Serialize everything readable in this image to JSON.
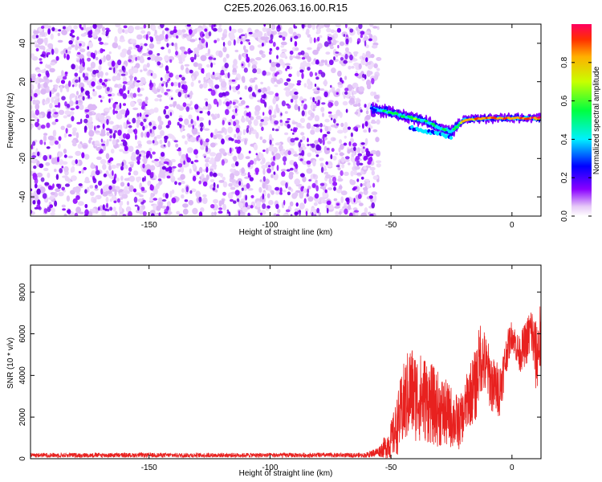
{
  "title": "C2E5.2026.063.16.00.R15",
  "chart_data": [
    {
      "type": "heatmap",
      "name": "spectrogram",
      "xlabel": "Height of straight line (km)",
      "ylabel": "Frequency (Hz)",
      "xlim": [
        -199,
        12
      ],
      "ylim": [
        -50,
        50
      ],
      "xticks": [
        -150,
        -100,
        -50,
        0
      ],
      "yticks": [
        -40,
        -20,
        0,
        20,
        40
      ],
      "xtick_labels": [
        "-150",
        "-100",
        "-50",
        "0"
      ],
      "ytick_labels": [
        "-40",
        "-20",
        "0",
        "20",
        "40"
      ],
      "noise_region_km": [
        -199,
        -57
      ],
      "signal_ridge": {
        "x": [
          -58,
          -50,
          -45,
          -40,
          -35,
          -30,
          -25,
          -20,
          -10,
          0,
          12
        ],
        "freq": [
          6,
          4,
          2,
          1,
          -1,
          -4,
          -6,
          0,
          1,
          1,
          1
        ],
        "amplitude": [
          0.3,
          0.5,
          0.5,
          0.55,
          0.45,
          0.45,
          0.4,
          0.85,
          0.9,
          0.95,
          0.9
        ]
      },
      "colorbar": {
        "label": "Normalized spectral amplitude",
        "range": [
          0,
          1
        ],
        "ticks": [
          0.0,
          0.2,
          0.4,
          0.6,
          0.8
        ],
        "tick_labels": [
          "0.0",
          "0.2",
          "0.4",
          "0.6",
          "0.8"
        ]
      }
    },
    {
      "type": "line",
      "name": "snr",
      "xlabel": "Height of straight line (km)",
      "ylabel": "SNR (10 * v/v)",
      "xlim": [
        -199,
        12
      ],
      "ylim": [
        0,
        9300
      ],
      "xticks": [
        -150,
        -100,
        -50,
        0
      ],
      "yticks": [
        0,
        2000,
        4000,
        6000,
        8000
      ],
      "xtick_labels": [
        "-150",
        "-100",
        "-50",
        "0"
      ],
      "ytick_labels": [
        "0",
        "2000",
        "4000",
        "6000",
        "8000"
      ],
      "color": "#e8211f",
      "envelope": {
        "x": [
          -199,
          -60,
          -55,
          -52,
          -50,
          -48,
          -45,
          -42,
          -40,
          -36,
          -32,
          -28,
          -25,
          -22,
          -20,
          -18,
          -15,
          -13,
          -10,
          -8,
          -5,
          -2,
          0,
          3,
          6,
          8,
          10,
          12
        ],
        "mean": [
          180,
          180,
          350,
          600,
          900,
          1400,
          2500,
          3300,
          3000,
          2900,
          2500,
          2200,
          2000,
          1700,
          2100,
          3000,
          3500,
          5000,
          4200,
          3500,
          3300,
          5200,
          6000,
          5000,
          5600,
          6200,
          4800,
          6000
        ],
        "spread": [
          120,
          130,
          250,
          600,
          900,
          1300,
          2000,
          2300,
          2200,
          2100,
          1900,
          1700,
          1500,
          1300,
          1200,
          1500,
          1800,
          1800,
          1500,
          1400,
          1300,
          900,
          700,
          900,
          1100,
          1300,
          1800,
          1800
        ]
      }
    }
  ]
}
